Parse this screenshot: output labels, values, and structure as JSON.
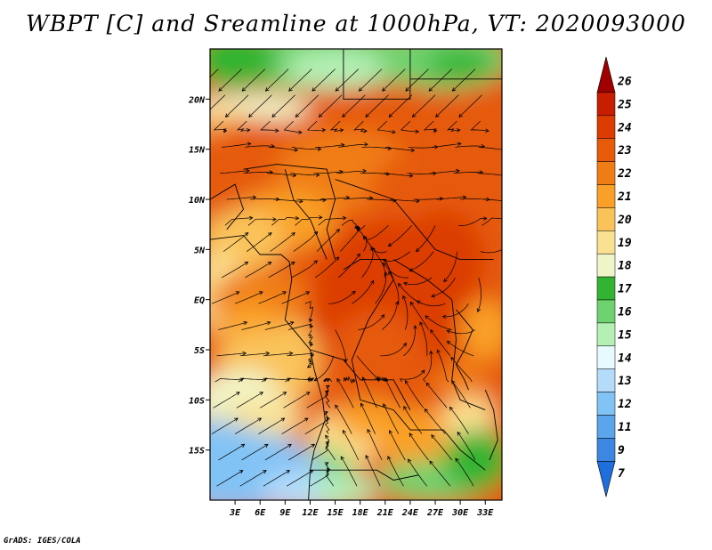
{
  "title": "WBPT [C] and Sreamline at 1000hPa, VT: 2020093000",
  "credit": "GrADS: IGES/COLA",
  "chart_data": {
    "type": "heatmap",
    "title": "WBPT [C] and Sreamline at 1000hPa, VT: 2020093000",
    "variable": "WBPT",
    "unit": "C",
    "overlay": "streamlines",
    "level": "1000hPa",
    "valid_time": "2020093000",
    "lon_range": [
      0,
      35
    ],
    "lat_range": [
      -20,
      25
    ],
    "x_ticks": [
      "3E",
      "6E",
      "9E",
      "12E",
      "15E",
      "18E",
      "21E",
      "24E",
      "27E",
      "30E",
      "33E"
    ],
    "x_tick_values": [
      3,
      6,
      9,
      12,
      15,
      18,
      21,
      24,
      27,
      30,
      33
    ],
    "y_ticks": [
      "20N",
      "15N",
      "10N",
      "5N",
      "EQ",
      "5S",
      "10S",
      "15S"
    ],
    "y_tick_values": [
      20,
      15,
      10,
      5,
      0,
      -5,
      -10,
      -15
    ],
    "colorbar": {
      "levels": [
        "26",
        "25",
        "24",
        "23",
        "22",
        "21",
        "20",
        "19",
        "18",
        "17",
        "16",
        "15",
        "14",
        "13",
        "12",
        "11",
        "9",
        "7"
      ],
      "colors": [
        "#a00000",
        "#c81e00",
        "#dc3c00",
        "#e65a0a",
        "#f07d14",
        "#faa028",
        "#fac35a",
        "#fae191",
        "#f0f5c8",
        "#32b432",
        "#6ed26e",
        "#b4f0b4",
        "#e6faff",
        "#b4dcfa",
        "#82c3f5",
        "#5aa5eb",
        "#3c87e1",
        "#1e6edc"
      ],
      "extend": "both"
    }
  }
}
